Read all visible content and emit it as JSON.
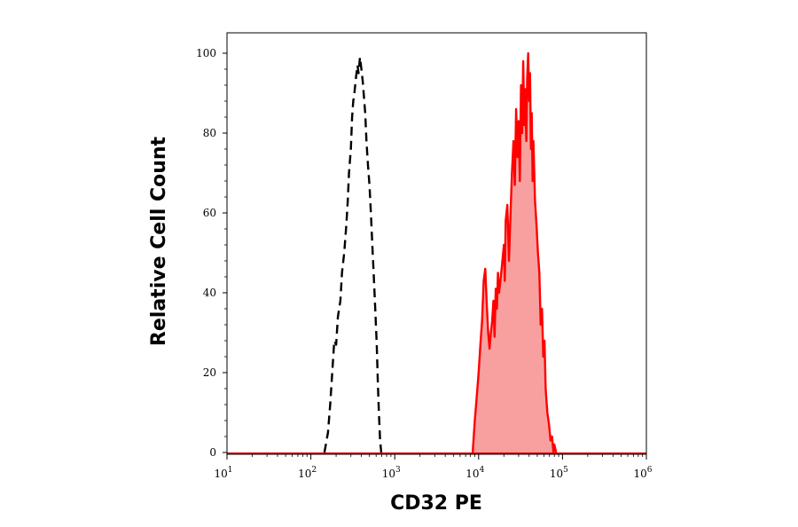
{
  "chart_data": {
    "type": "area",
    "title": "",
    "xlabel": "CD32 PE",
    "ylabel": "Relative Cell Count",
    "xscale": "log",
    "xlim": [
      10,
      1000000
    ],
    "ylim": [
      0,
      100
    ],
    "x_ticks": [
      {
        "base": "10",
        "exp": "1"
      },
      {
        "base": "10",
        "exp": "2"
      },
      {
        "base": "10",
        "exp": "3"
      },
      {
        "base": "10",
        "exp": "4"
      },
      {
        "base": "10",
        "exp": "5"
      },
      {
        "base": "10",
        "exp": "6"
      }
    ],
    "y_ticks": [
      "0",
      "20",
      "40",
      "60",
      "80",
      "100"
    ],
    "grid": false,
    "series": [
      {
        "style": "dashed",
        "color": "#000000",
        "filled": false,
        "points": [
          [
            145,
            0
          ],
          [
            160,
            5
          ],
          [
            170,
            12
          ],
          [
            180,
            20
          ],
          [
            190,
            28
          ],
          [
            200,
            27
          ],
          [
            210,
            34
          ],
          [
            225,
            38
          ],
          [
            235,
            45
          ],
          [
            250,
            50
          ],
          [
            265,
            57
          ],
          [
            275,
            63
          ],
          [
            285,
            70
          ],
          [
            300,
            76
          ],
          [
            310,
            84
          ],
          [
            320,
            88
          ],
          [
            330,
            90
          ],
          [
            345,
            94
          ],
          [
            360,
            97
          ],
          [
            370,
            95
          ],
          [
            385,
            99
          ],
          [
            400,
            96
          ],
          [
            415,
            93
          ],
          [
            430,
            89
          ],
          [
            445,
            85
          ],
          [
            460,
            78
          ],
          [
            480,
            72
          ],
          [
            500,
            67
          ],
          [
            520,
            60
          ],
          [
            540,
            52
          ],
          [
            560,
            45
          ],
          [
            585,
            36
          ],
          [
            610,
            27
          ],
          [
            630,
            17
          ],
          [
            650,
            9
          ],
          [
            670,
            3
          ],
          [
            690,
            0
          ]
        ]
      },
      {
        "style": "solid",
        "color": "#ff0000",
        "fill": "#f8a0a0",
        "filled": true,
        "points": [
          [
            8500,
            0
          ],
          [
            9000,
            8
          ],
          [
            9500,
            14
          ],
          [
            10000,
            20
          ],
          [
            10500,
            27
          ],
          [
            11000,
            33
          ],
          [
            11500,
            43
          ],
          [
            12000,
            46
          ],
          [
            12500,
            37
          ],
          [
            13000,
            30
          ],
          [
            13500,
            26
          ],
          [
            14000,
            30
          ],
          [
            14500,
            33
          ],
          [
            15000,
            38
          ],
          [
            15500,
            29
          ],
          [
            16000,
            41
          ],
          [
            16500,
            36
          ],
          [
            17000,
            45
          ],
          [
            17500,
            40
          ],
          [
            18000,
            42
          ],
          [
            19000,
            47
          ],
          [
            20000,
            52
          ],
          [
            20500,
            43
          ],
          [
            21000,
            58
          ],
          [
            22000,
            62
          ],
          [
            23000,
            48
          ],
          [
            24000,
            60
          ],
          [
            25000,
            70
          ],
          [
            26000,
            78
          ],
          [
            27000,
            67
          ],
          [
            28000,
            86
          ],
          [
            29000,
            74
          ],
          [
            30000,
            83
          ],
          [
            31000,
            68
          ],
          [
            32000,
            92
          ],
          [
            33000,
            80
          ],
          [
            34000,
            98
          ],
          [
            35000,
            82
          ],
          [
            36000,
            91
          ],
          [
            37000,
            78
          ],
          [
            38000,
            94
          ],
          [
            39000,
            100
          ],
          [
            40000,
            88
          ],
          [
            41000,
            95
          ],
          [
            42000,
            76
          ],
          [
            43000,
            85
          ],
          [
            44000,
            68
          ],
          [
            45000,
            78
          ],
          [
            47000,
            63
          ],
          [
            49000,
            57
          ],
          [
            51000,
            50
          ],
          [
            53000,
            45
          ],
          [
            55000,
            32
          ],
          [
            57000,
            36
          ],
          [
            59000,
            24
          ],
          [
            61000,
            28
          ],
          [
            63000,
            16
          ],
          [
            66000,
            10
          ],
          [
            69000,
            7
          ],
          [
            72000,
            3
          ],
          [
            75000,
            4
          ],
          [
            78000,
            0
          ],
          [
            80000,
            2
          ],
          [
            84000,
            0
          ]
        ]
      }
    ]
  }
}
